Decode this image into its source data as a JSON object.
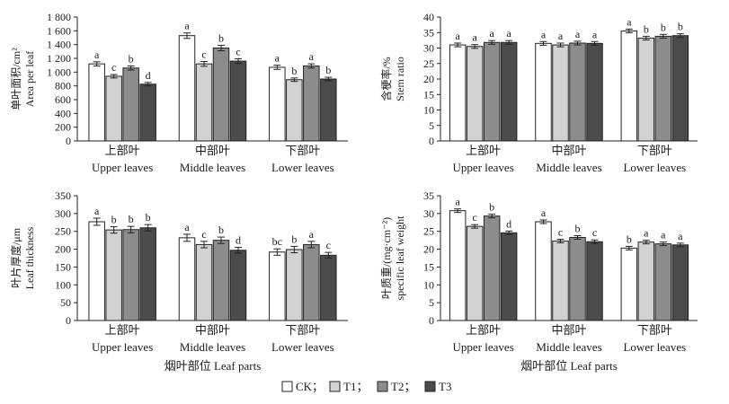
{
  "series_colors": {
    "CK": "#ffffff",
    "T1": "#d2d2d2",
    "T2": "#8c8c8c",
    "T3": "#4b4b4b"
  },
  "legend": [
    {
      "key": "CK",
      "label": "CK；"
    },
    {
      "key": "T1",
      "label": "T1；"
    },
    {
      "key": "T2",
      "label": "T2；"
    },
    {
      "key": "T3",
      "label": "T3"
    }
  ],
  "xlabel_bottom": "烟叶部位 Leaf parts",
  "chart_data": [
    {
      "id": "area",
      "type": "bar",
      "ylabel_cn": "单叶面积/cm²",
      "ylabel_en": "Area per leaf",
      "ylim": [
        0,
        1800
      ],
      "yticks": [
        0,
        200,
        400,
        600,
        800,
        1000,
        1200,
        1400,
        1600,
        1800
      ],
      "ytick_labels": [
        "0",
        "200",
        "400",
        "600",
        "800",
        "1 000",
        "1 200",
        "1 400",
        "1 600",
        "1 800"
      ],
      "categories_cn": [
        "上部叶",
        "中部叶",
        "下部叶"
      ],
      "categories_en": [
        "Upper leaves",
        "Middle leaves",
        "Lower leaves"
      ],
      "series": [
        {
          "name": "CK",
          "values": [
            1120,
            1530,
            1070
          ],
          "errors": [
            30,
            40,
            30
          ],
          "letters": [
            "a",
            "a",
            "a"
          ]
        },
        {
          "name": "T1",
          "values": [
            940,
            1120,
            890
          ],
          "errors": [
            25,
            35,
            25
          ],
          "letters": [
            "c",
            "c",
            "b"
          ]
        },
        {
          "name": "T2",
          "values": [
            1060,
            1350,
            1090
          ],
          "errors": [
            30,
            40,
            30
          ],
          "letters": [
            "b",
            "b",
            "a"
          ]
        },
        {
          "name": "T3",
          "values": [
            825,
            1160,
            900
          ],
          "errors": [
            25,
            35,
            25
          ],
          "letters": [
            "d",
            "c",
            "b"
          ]
        }
      ]
    },
    {
      "id": "stem",
      "type": "bar",
      "ylabel_cn": "含梗率/%",
      "ylabel_en": "Stem ratio",
      "ylim": [
        0,
        40
      ],
      "yticks": [
        0,
        5,
        10,
        15,
        20,
        25,
        30,
        35,
        40
      ],
      "ytick_labels": [
        "0",
        "5",
        "10",
        "15",
        "20",
        "25",
        "30",
        "35",
        "40"
      ],
      "categories_cn": [
        "上部叶",
        "中部叶",
        "下部叶"
      ],
      "categories_en": [
        "Upper leaves",
        "Middle leaves",
        "Lower leaves"
      ],
      "series": [
        {
          "name": "CK",
          "values": [
            31.0,
            31.5,
            35.5
          ],
          "errors": [
            0.6,
            0.6,
            0.6
          ],
          "letters": [
            "a",
            "a",
            "a"
          ]
        },
        {
          "name": "T1",
          "values": [
            30.5,
            31.0,
            33.2
          ],
          "errors": [
            0.6,
            0.6,
            0.6
          ],
          "letters": [
            "a",
            "a",
            "b"
          ]
        },
        {
          "name": "T2",
          "values": [
            31.8,
            31.6,
            33.8
          ],
          "errors": [
            0.6,
            0.6,
            0.6
          ],
          "letters": [
            "a",
            "a",
            "b"
          ]
        },
        {
          "name": "T3",
          "values": [
            31.8,
            31.5,
            34.0
          ],
          "errors": [
            0.6,
            0.6,
            0.6
          ],
          "letters": [
            "a",
            "a",
            "b"
          ]
        }
      ]
    },
    {
      "id": "thickness",
      "type": "bar",
      "ylabel_cn": "叶片厚度/μm",
      "ylabel_en": "Leaf thickness",
      "ylim": [
        0,
        350
      ],
      "yticks": [
        0,
        50,
        100,
        150,
        200,
        250,
        300,
        350
      ],
      "ytick_labels": [
        "0",
        "50",
        "100",
        "150",
        "200",
        "250",
        "300",
        "350"
      ],
      "categories_cn": [
        "上部叶",
        "中部叶",
        "下部叶"
      ],
      "categories_en": [
        "Upper leaves",
        "Middle leaves",
        "Lower leaves"
      ],
      "xlabel": "烟叶部位 Leaf parts",
      "series": [
        {
          "name": "CK",
          "values": [
            277,
            232,
            192
          ],
          "errors": [
            10,
            10,
            9
          ],
          "letters": [
            "a",
            "a",
            "bc"
          ]
        },
        {
          "name": "T1",
          "values": [
            254,
            213,
            199
          ],
          "errors": [
            9,
            9,
            9
          ],
          "letters": [
            "b",
            "c",
            "b"
          ]
        },
        {
          "name": "T2",
          "values": [
            255,
            225,
            213
          ],
          "errors": [
            9,
            9,
            9
          ],
          "letters": [
            "b",
            "b",
            "a"
          ]
        },
        {
          "name": "T3",
          "values": [
            260,
            197,
            183
          ],
          "errors": [
            9,
            8,
            8
          ],
          "letters": [
            "b",
            "d",
            "c"
          ]
        }
      ]
    },
    {
      "id": "specific",
      "type": "bar",
      "ylabel_cn": "叶质重/(mg·cm⁻²)",
      "ylabel_en": "specific leaf weight",
      "ylim": [
        0,
        35
      ],
      "yticks": [
        0,
        5,
        10,
        15,
        20,
        25,
        30,
        35
      ],
      "ytick_labels": [
        "0",
        "5",
        "10",
        "15",
        "20",
        "25",
        "30",
        "35"
      ],
      "categories_cn": [
        "上部叶",
        "中部叶",
        "下部叶"
      ],
      "categories_en": [
        "Upper leaves",
        "Middle leaves",
        "Lower leaves"
      ],
      "xlabel": "烟叶部位 Leaf parts",
      "series": [
        {
          "name": "CK",
          "values": [
            30.8,
            27.7,
            20.3
          ],
          "errors": [
            0.5,
            0.5,
            0.5
          ],
          "letters": [
            "a",
            "a",
            "b"
          ]
        },
        {
          "name": "T1",
          "values": [
            26.4,
            22.3,
            22.0
          ],
          "errors": [
            0.5,
            0.5,
            0.5
          ],
          "letters": [
            "c",
            "c",
            "a"
          ]
        },
        {
          "name": "T2",
          "values": [
            29.3,
            23.3,
            21.5
          ],
          "errors": [
            0.5,
            0.5,
            0.5
          ],
          "letters": [
            "b",
            "b",
            "a"
          ]
        },
        {
          "name": "T3",
          "values": [
            24.6,
            22.1,
            21.2
          ],
          "errors": [
            0.5,
            0.5,
            0.5
          ],
          "letters": [
            "d",
            "c",
            "a"
          ]
        }
      ]
    }
  ]
}
